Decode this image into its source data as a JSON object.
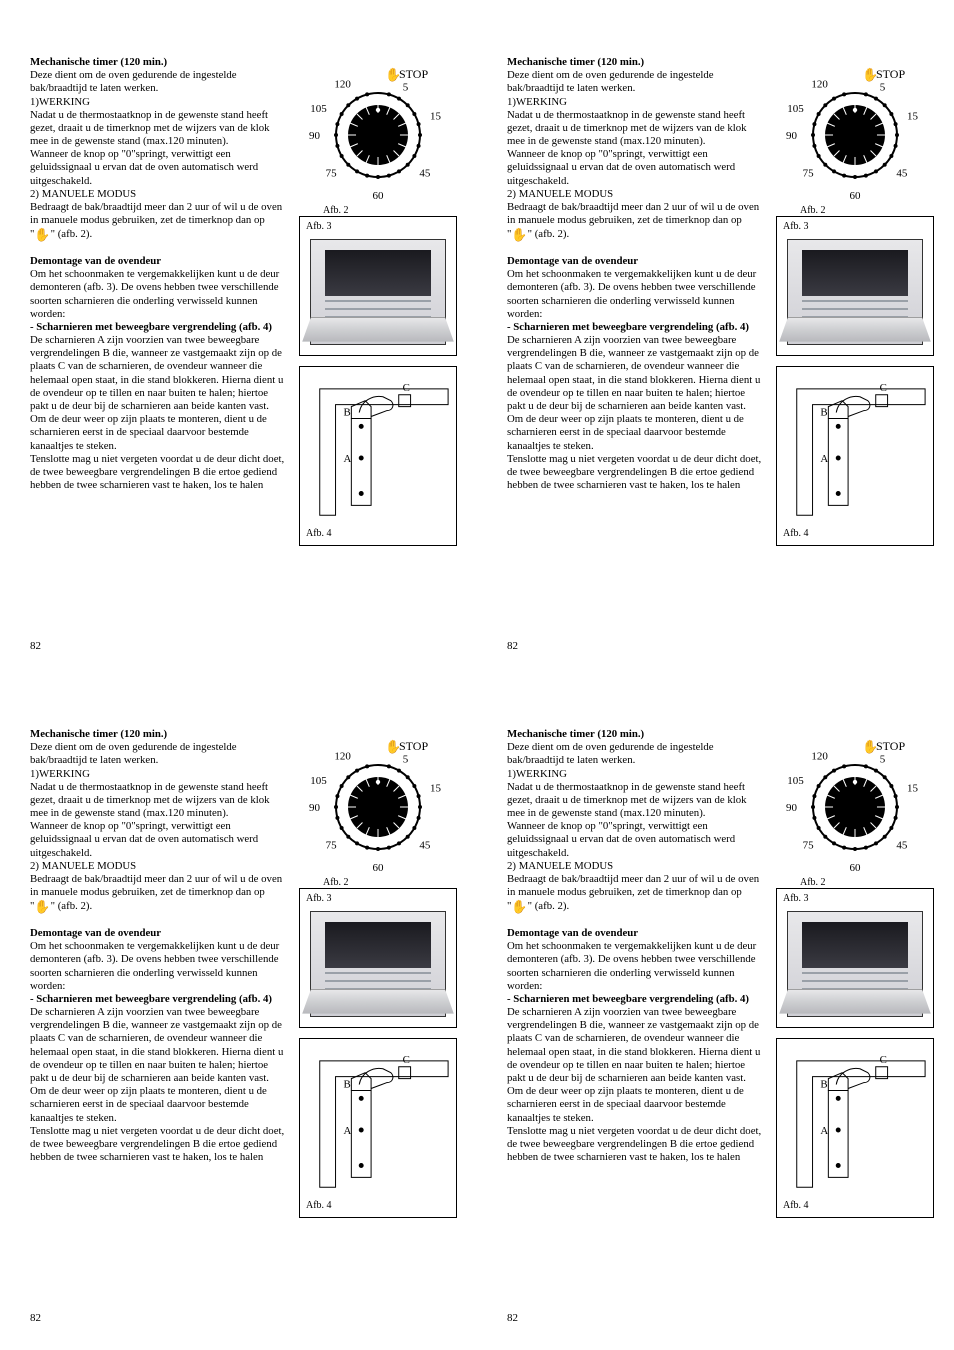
{
  "page_number": "82",
  "section1": {
    "title": "Mechanische timer (120 min.)",
    "p1": "Deze dient om de oven gedurende de ingestelde bak/braadtijd te laten werken.",
    "p2": "1)WERKING",
    "p3": "Nadat u de thermostaatknop in de gewenste stand heeft gezet, draait u de timerknop met de wijzers van de klok mee in de gewenste stand (max.120 minuten).",
    "p4": "Wanneer de knop op \"0\"springt, verwittigt een geluidssignaal u ervan dat de oven automatisch werd uitgeschakeld.",
    "p5": "2) MANUELE MODUS",
    "p6a": "Bedraagt de bak/braadtijd meer dan 2 uur of wil u de oven in manuele modus gebruiken, zet de timerknop dan op \"",
    "p6b": "\" (afb. 2)."
  },
  "section2": {
    "title": "Demontage van de ovendeur",
    "p1": "Om het schoonmaken te vergemakkelijken kunt u de deur demonteren (afb. 3). De ovens hebben twee verschillende soorten scharnieren die onderling verwisseld kunnen worden:",
    "sub": "- Scharnieren met beweegbare vergrendeling (afb. 4)",
    "p2": "De scharnieren A zijn voorzien van twee beweegbare vergrendelingen B die, wanneer ze vastgemaakt zijn op de plaats C van de scharnieren, de ovendeur wanneer die helemaal open staat, in die stand blokkeren. Hierna dient u de ovendeur op te tillen en naar buiten te halen; hiertoe pakt u de deur bij de scharnieren aan beide kanten vast. Om de deur weer op zijn plaats te monteren, dient u de scharnieren eerst in de speciaal daarvoor bestemde kanaaltjes te steken.",
    "p3": "Tenslotte mag u niet vergeten voordat u de deur dicht doet, de twee beweegbare vergrendelingen B die ertoe gediend hebben de twee scharnieren vast te haken, los te halen"
  },
  "dial": {
    "stop": "STOP",
    "ticks": [
      "5",
      "15",
      "45",
      "60",
      "75",
      "90",
      "105",
      "120"
    ],
    "caption": "Afb. 2"
  },
  "fig3": {
    "label": "Afb. 3"
  },
  "fig4": {
    "label": "Afb. 4",
    "letters": {
      "a": "A",
      "b": "B",
      "c": "C"
    }
  },
  "colors": {
    "text": "#000000",
    "background": "#ffffff",
    "dial_fill": "#000000",
    "oven_dark": "#1a1a1f"
  }
}
